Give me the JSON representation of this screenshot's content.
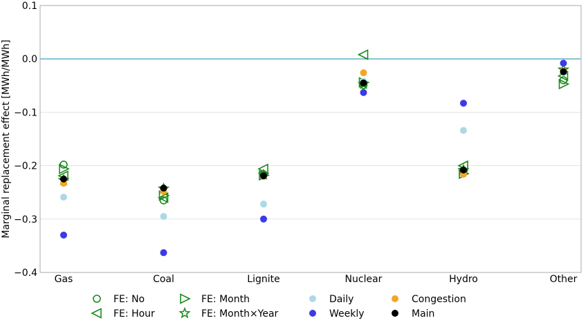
{
  "chart_data": {
    "type": "scatter",
    "title": "",
    "xlabel": "",
    "ylabel": "Marginal replacement effect [MWh/MWh]",
    "categories": [
      "Gas",
      "Coal",
      "Lignite",
      "Nuclear",
      "Hydro",
      "Other"
    ],
    "ylim": [
      -0.4,
      0.1
    ],
    "yticks": [
      -0.4,
      -0.3,
      -0.2,
      -0.1,
      0.0,
      0.1
    ],
    "ytick_labels": [
      "−0.4",
      "−0.3",
      "−0.2",
      "−0.1",
      "0.0",
      "0.1"
    ],
    "grid": "horizontal",
    "reference_line": {
      "y": 0.0,
      "color": "#4fa8c7"
    },
    "series": [
      {
        "name": "FE: No",
        "marker": "circle-open",
        "color": "#1a8a1a",
        "values": [
          -0.198,
          -0.265,
          -0.216,
          -0.049,
          -0.211,
          -0.04
        ]
      },
      {
        "name": "FE: Hour",
        "marker": "triangle-left-open",
        "color": "#1a8a1a",
        "values": [
          -0.219,
          -0.26,
          -0.206,
          0.008,
          -0.2,
          -0.032
        ]
      },
      {
        "name": "FE: Month",
        "marker": "triangle-right-open",
        "color": "#1a8a1a",
        "values": [
          -0.206,
          -0.256,
          -0.218,
          -0.044,
          -0.215,
          -0.047
        ]
      },
      {
        "name": "FE: Month×Year",
        "marker": "star-open",
        "color": "#1a8a1a",
        "values": [
          -0.227,
          -0.243,
          -0.217,
          -0.047,
          -0.208,
          -0.02
        ]
      },
      {
        "name": "Daily",
        "marker": "circle",
        "color": "#add8e6",
        "values": [
          -0.259,
          -0.295,
          -0.272,
          -0.042,
          -0.134,
          -0.025
        ]
      },
      {
        "name": "Weekly",
        "marker": "circle",
        "color": "#3a3ae6",
        "values": [
          -0.33,
          -0.363,
          -0.3,
          -0.063,
          -0.083,
          -0.008
        ]
      },
      {
        "name": "Congestion",
        "marker": "circle",
        "color": "#f5a623",
        "values": [
          -0.233,
          -0.248,
          -0.22,
          -0.026,
          -0.216,
          -0.023
        ]
      },
      {
        "name": "Main",
        "marker": "circle",
        "color": "#000000",
        "values": [
          -0.225,
          -0.242,
          -0.219,
          -0.045,
          -0.208,
          -0.024
        ]
      }
    ],
    "legend_position": "bottom"
  }
}
